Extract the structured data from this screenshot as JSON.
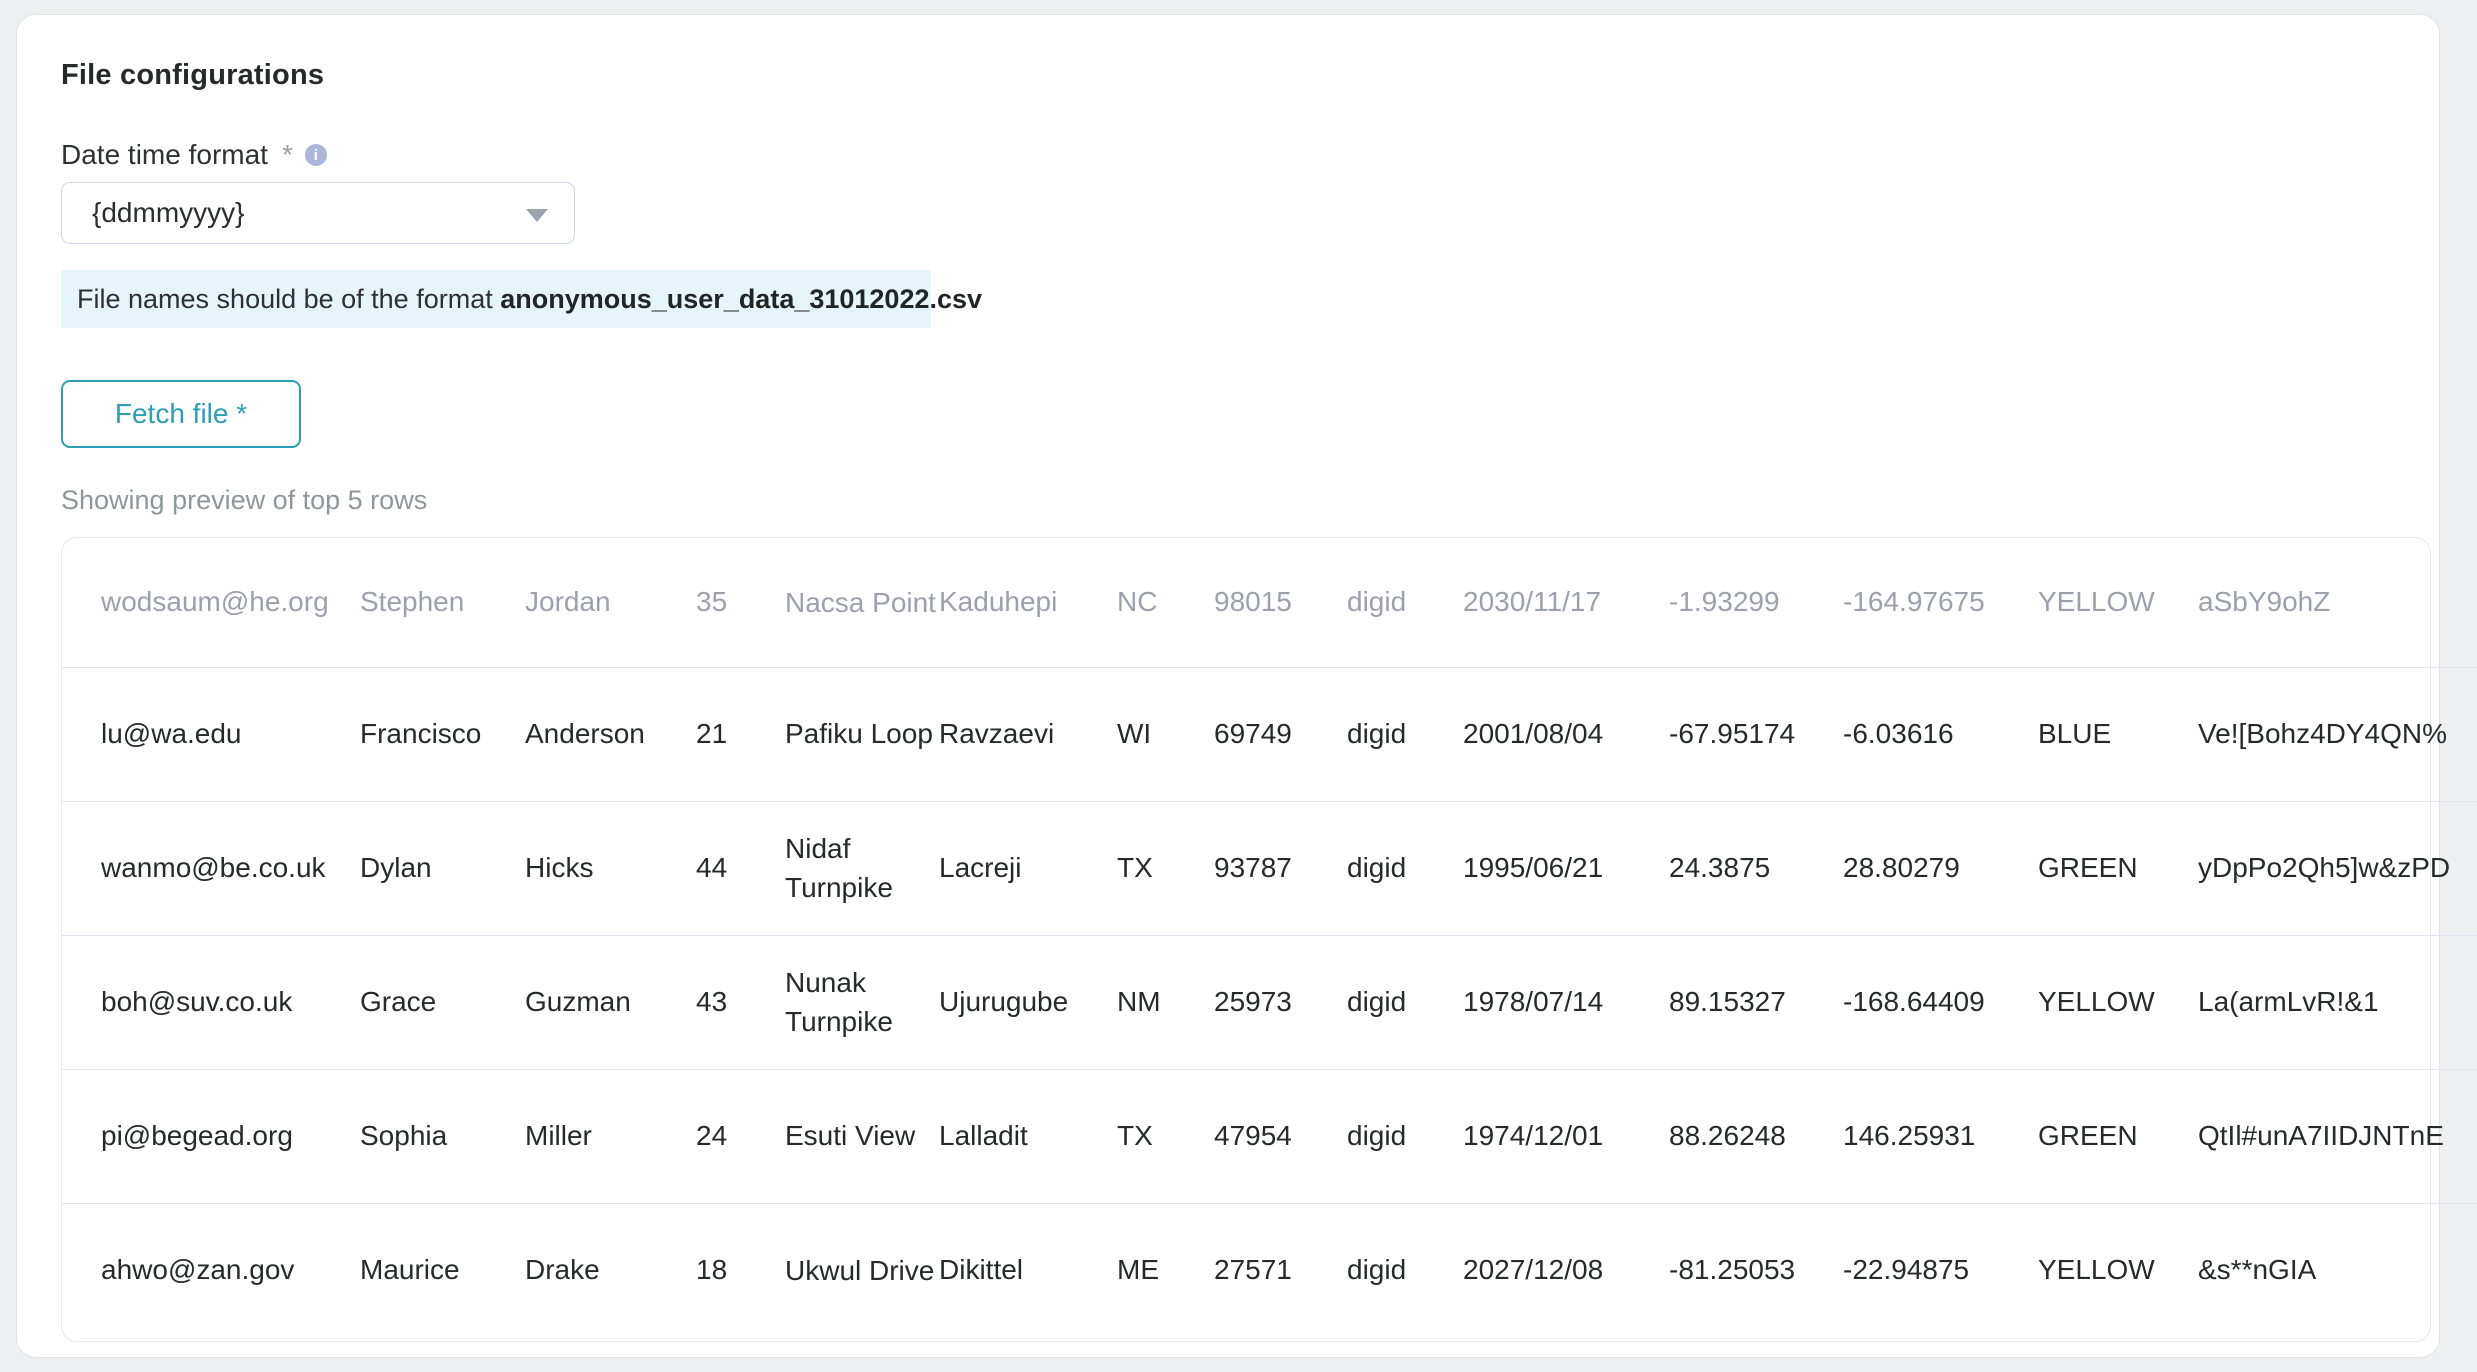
{
  "page": {
    "title": "File configurations"
  },
  "form": {
    "datetime_label": "Date time format",
    "required_marker": "*",
    "dropdown_value": "{ddmmyyyy}",
    "banner_text_prefix": "File names should be of the format ",
    "banner_filename": "anonymous_user_data_31012022.csv",
    "fetch_button_label": "Fetch file *",
    "preview_caption": "Showing preview of top 5 rows"
  },
  "icons": {
    "info_icon_glyph": "i",
    "dropdown_chevron": "triangle-down"
  },
  "colors": {
    "accent_teal": "#2b9fb3",
    "banner_background": "#e6f5f9",
    "info_icon_background": "#a9b5d9",
    "header_text": "#9ba1ab",
    "body_text": "#27292b",
    "row_divider": "#dfe4f2",
    "page_background": "#eeeff0"
  },
  "table": {
    "header": [
      "wodsaum@he.org",
      "Stephen",
      "Jordan",
      "35",
      "Nacsa Point",
      "Kaduhepi",
      "NC",
      "98015",
      "digid",
      "2030/11/17",
      "-1.93299",
      "-164.97675",
      "YELLOW",
      "aSbY9ohZ"
    ],
    "rows": [
      [
        "lu@wa.edu",
        "Francisco",
        "Anderson",
        "21",
        "Pafiku Loop",
        "Ravzaevi",
        "WI",
        "69749",
        "digid",
        "2001/08/04",
        "-67.95174",
        "-6.03616",
        "BLUE",
        "Ve![Bohz4DY4QN%"
      ],
      [
        "wanmo@be.co.uk",
        "Dylan",
        "Hicks",
        "44",
        "Nidaf Turnpike",
        "Lacreji",
        "TX",
        "93787",
        "digid",
        "1995/06/21",
        "24.3875",
        "28.80279",
        "GREEN",
        "yDpPo2Qh5]w&zPD"
      ],
      [
        "boh@suv.co.uk",
        "Grace",
        "Guzman",
        "43",
        "Nunak Turnpike",
        "Ujurugube",
        "NM",
        "25973",
        "digid",
        "1978/07/14",
        "89.15327",
        "-168.64409",
        "YELLOW",
        "La(armLvR!&1"
      ],
      [
        "pi@begead.org",
        "Sophia",
        "Miller",
        "24",
        "Esuti View",
        "Lalladit",
        "TX",
        "47954",
        "digid",
        "1974/12/01",
        "88.26248",
        "146.25931",
        "GREEN",
        "QtIl#unA7IIDJNTnE"
      ],
      [
        "ahwo@zan.gov",
        "Maurice",
        "Drake",
        "18",
        "Ukwul Drive",
        "Dikittel",
        "ME",
        "27571",
        "digid",
        "2027/12/08",
        "-81.25053",
        "-22.94875",
        "YELLOW",
        "&s**nGIA"
      ]
    ]
  }
}
